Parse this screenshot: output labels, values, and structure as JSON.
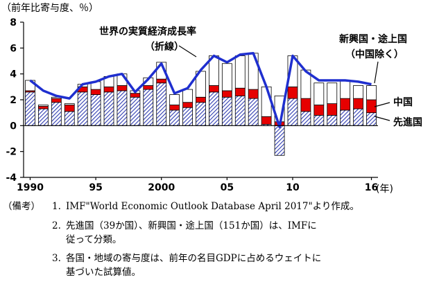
{
  "chart_data": {
    "type": "bar",
    "stacked": true,
    "unit_label": "（前年比寄与度、％）",
    "x_unit": "(年)",
    "x": [
      1990,
      1991,
      1992,
      1993,
      1994,
      1995,
      1996,
      1997,
      1998,
      1999,
      2000,
      2001,
      2002,
      2003,
      2004,
      2005,
      2006,
      2007,
      2008,
      2009,
      2010,
      2011,
      2012,
      2013,
      2014,
      2015,
      2016
    ],
    "x_tick_labels": [
      {
        "year": 1990,
        "label": "1990"
      },
      {
        "year": 1995,
        "label": "95"
      },
      {
        "year": 2000,
        "label": "2000"
      },
      {
        "year": 2005,
        "label": "05"
      },
      {
        "year": 2010,
        "label": "10"
      },
      {
        "year": 2016,
        "label": "16"
      }
    ],
    "ylim": [
      -4,
      8
    ],
    "y_ticks": [
      -4,
      -2,
      0,
      2,
      4,
      6,
      8
    ],
    "series": [
      {
        "name": "先進国",
        "pattern": "hatch",
        "color": "#2e3bb0",
        "values": [
          2.6,
          1.3,
          1.8,
          1.1,
          2.6,
          2.4,
          2.6,
          2.7,
          2.2,
          2.8,
          3.3,
          1.2,
          1.4,
          1.8,
          2.6,
          2.2,
          2.3,
          2.1,
          0.1,
          -2.3,
          2.1,
          1.1,
          0.8,
          0.8,
          1.2,
          1.3,
          1.0
        ]
      },
      {
        "name": "中国",
        "pattern": "solid",
        "color": "#e60000",
        "values": [
          0.1,
          0.2,
          0.3,
          0.5,
          0.4,
          0.4,
          0.4,
          0.4,
          0.3,
          0.3,
          0.3,
          0.4,
          0.4,
          0.4,
          0.5,
          0.5,
          0.6,
          0.7,
          0.6,
          0.3,
          0.9,
          1.0,
          0.8,
          0.9,
          0.9,
          0.8,
          1.0
        ]
      },
      {
        "name": "新興国・途上国（中国除く）",
        "pattern": "empty",
        "color": "#ffffff",
        "values": [
          0.8,
          0.1,
          0.1,
          0.1,
          0.2,
          0.6,
          0.8,
          0.9,
          0.2,
          0.6,
          1.3,
          0.8,
          1.0,
          2.0,
          2.3,
          2.1,
          2.5,
          2.8,
          2.3,
          2.0,
          2.4,
          2.2,
          1.7,
          1.6,
          1.4,
          1.0,
          1.1
        ]
      }
    ],
    "line": {
      "name": "世界の実質経済成長率",
      "name_sub": "（折線）",
      "color": "#1f2fcf",
      "values": [
        3.5,
        2.7,
        2.3,
        2.1,
        3.2,
        3.4,
        3.8,
        4.0,
        2.6,
        3.6,
        4.8,
        2.5,
        2.9,
        4.3,
        5.4,
        4.9,
        5.5,
        5.6,
        3.0,
        -0.1,
        5.4,
        4.2,
        3.5,
        3.5,
        3.5,
        3.4,
        3.2
      ]
    },
    "labels": {
      "line_title": "世界の実質経済成長率",
      "line_sub": "（折線）",
      "emerging_1": "新興国・途上国",
      "emerging_2": "（中国除く）",
      "china": "中国",
      "advanced": "先進国"
    }
  },
  "notes": {
    "head": "（備考）",
    "items": [
      {
        "num": "1.",
        "lines": [
          "IMF\"World Economic Outlook Database April 2017\"より作成。"
        ]
      },
      {
        "num": "2.",
        "lines": [
          "先進国（39か国）、新興国・途上国（151か国）は、IMFに",
          "従って分類。"
        ]
      },
      {
        "num": "3.",
        "lines": [
          "各国・地域の寄与度は、前年の名目GDPに占めるウェイトに",
          "基づいた試算値。"
        ]
      }
    ]
  }
}
